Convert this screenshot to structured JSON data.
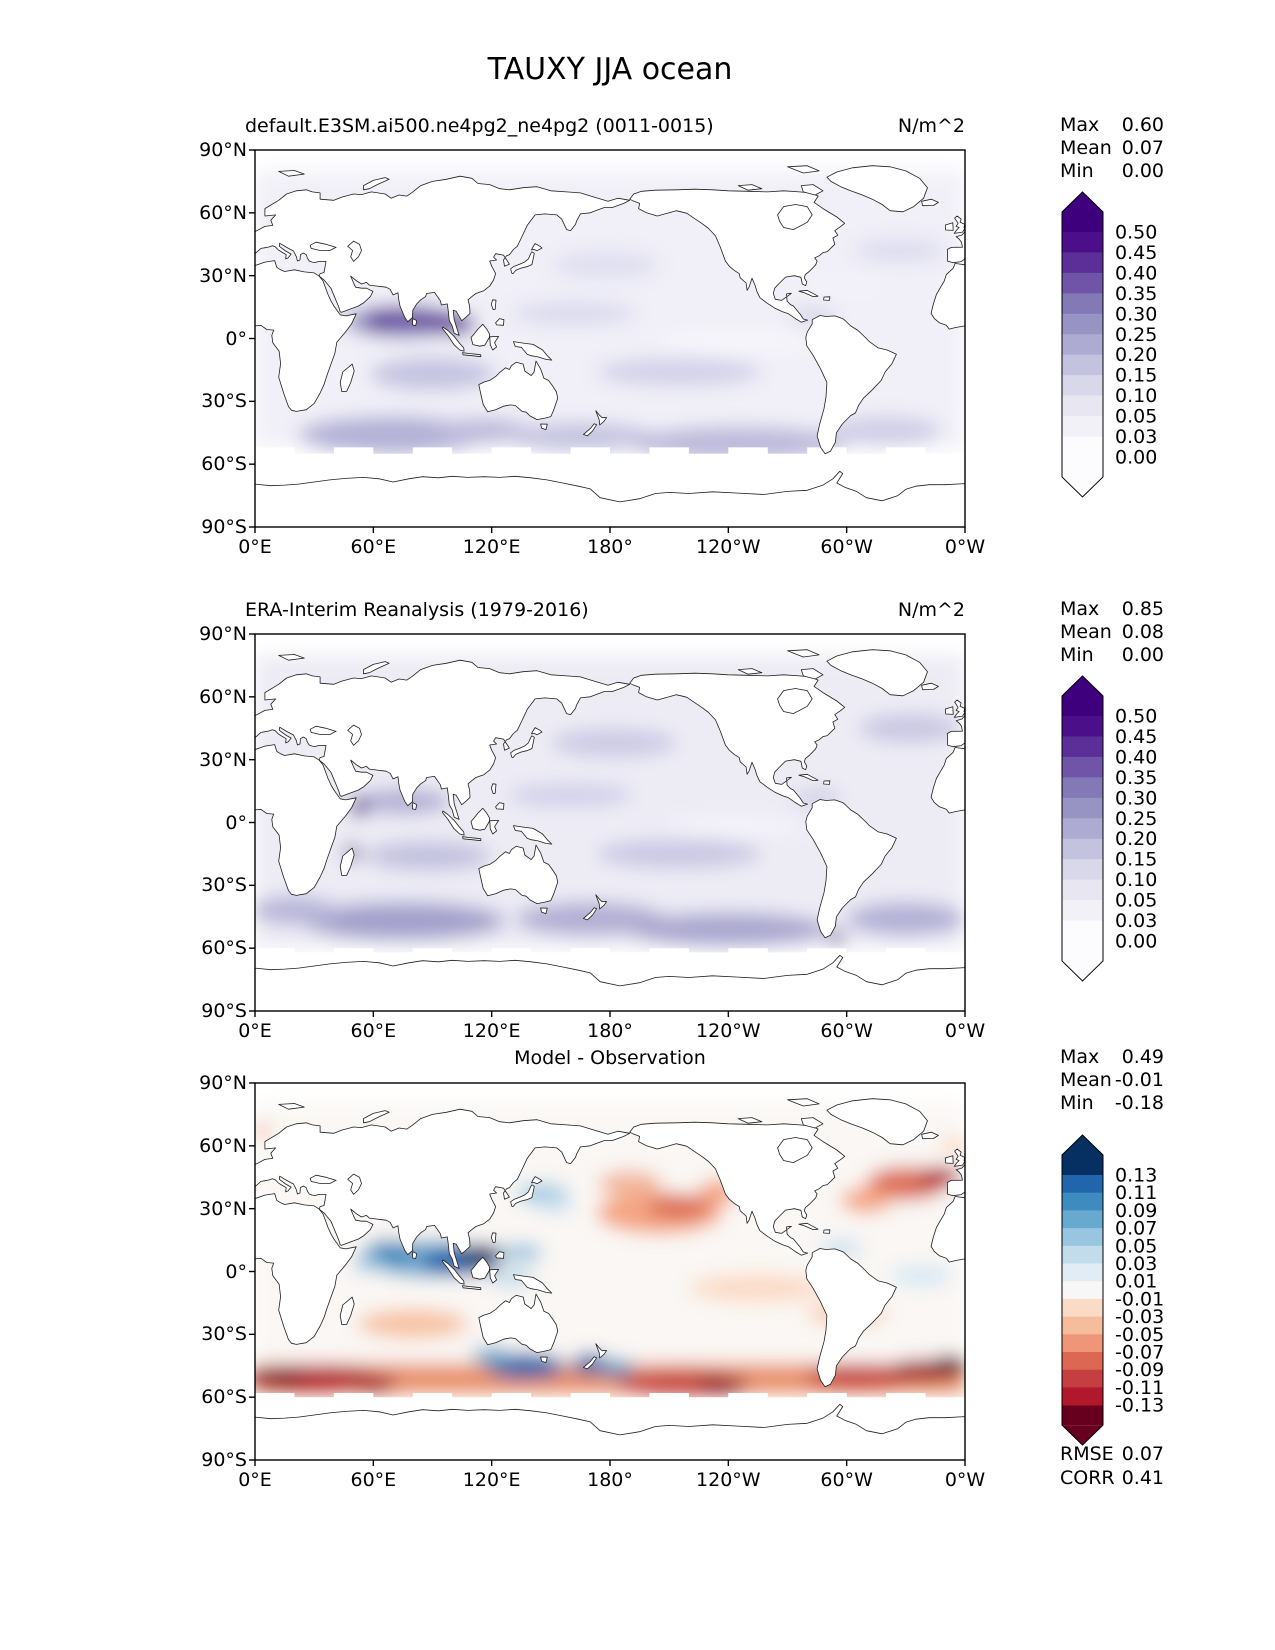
{
  "page_title": "TAUXY JJA ocean",
  "axes": {
    "x_ticks": [
      "0°E",
      "60°E",
      "120°E",
      "180°",
      "120°W",
      "60°W",
      "0°W"
    ],
    "y_ticks": [
      "90°N",
      "60°N",
      "30°N",
      "0°",
      "30°S",
      "60°S",
      "90°S"
    ]
  },
  "panels": [
    {
      "title": "default.E3SM.ai500.ne4pg2_ne4pg2 (0011-0015)",
      "units": "N/m^2",
      "stats": [
        {
          "label": "Max",
          "value": "0.60"
        },
        {
          "label": "Mean",
          "value": "0.07"
        },
        {
          "label": "Min",
          "value": "0.00"
        }
      ],
      "colorbar_labels": [
        "0.50",
        "0.45",
        "0.40",
        "0.35",
        "0.30",
        "0.25",
        "0.20",
        "0.15",
        "0.10",
        "0.05",
        "0.03",
        "0.00"
      ]
    },
    {
      "title": "ERA-Interim Reanalysis (1979-2016)",
      "units": "N/m^2",
      "stats": [
        {
          "label": "Max",
          "value": "0.85"
        },
        {
          "label": "Mean",
          "value": "0.08"
        },
        {
          "label": "Min",
          "value": "0.00"
        }
      ],
      "colorbar_labels": [
        "0.50",
        "0.45",
        "0.40",
        "0.35",
        "0.30",
        "0.25",
        "0.20",
        "0.15",
        "0.10",
        "0.05",
        "0.03",
        "0.00"
      ]
    },
    {
      "title": "Model - Observation",
      "units": "",
      "stats": [
        {
          "label": "Max",
          "value": "0.49"
        },
        {
          "label": "Mean",
          "value": "-0.01"
        },
        {
          "label": "Min",
          "value": "-0.18"
        }
      ],
      "colorbar_labels": [
        "0.13",
        "0.11",
        "0.09",
        "0.07",
        "0.05",
        "0.03",
        "0.01",
        "-0.01",
        "-0.03",
        "-0.05",
        "-0.07",
        "-0.09",
        "-0.11",
        "-0.13"
      ],
      "metrics": [
        {
          "label": "RMSE",
          "value": "0.07"
        },
        {
          "label": "CORR",
          "value": "0.41"
        }
      ]
    }
  ],
  "chart_data": {
    "type": "heatmap",
    "subtype": "filled-contour global lat-lon maps (Pacific-centered, ocean-only field)",
    "suptitle": "TAUXY JJA ocean",
    "variable": "TAUXY (zonal surface wind stress), JJA climatology over ocean",
    "units": "N/m^2",
    "x_axis": {
      "label": "longitude",
      "range_deg": [
        0,
        360
      ],
      "ticks": [
        "0°E",
        "60°E",
        "120°E",
        "180°",
        "120°W",
        "60°W",
        "0°W"
      ],
      "grid": false
    },
    "y_axis": {
      "label": "latitude",
      "range_deg": [
        -90,
        90
      ],
      "ticks": [
        "90°N",
        "60°N",
        "30°N",
        "0°",
        "30°S",
        "60°S",
        "90°S"
      ],
      "grid": false
    },
    "legend_position": "right colorbar per panel, vertical, extended arrows both ends",
    "panels": [
      {
        "role": "model",
        "title": "default.E3SM.ai500.ne4pg2_ne4pg2 (0011-0015)",
        "stats": {
          "max": 0.6,
          "mean": 0.07,
          "min": 0.0
        },
        "contour_levels": [
          0.0,
          0.03,
          0.05,
          0.1,
          0.15,
          0.2,
          0.25,
          0.3,
          0.35,
          0.4,
          0.45,
          0.5
        ],
        "colormap": "white-to-dark-purple (Purples)",
        "band_colors_low_to_high": [
          "#fcfbfd",
          "#f3f1f8",
          "#e8e6f1",
          "#d9d8ea",
          "#c4c3df",
          "#aeabd2",
          "#9794c4",
          "#8379b7",
          "#6f54a8",
          "#5c2f98",
          "#4c0f8a"
        ],
        "extend_low_color": "#fcfbfd",
        "extend_high_color": "#3f007d",
        "field_summary": "Strong maximum (0.3-0.55) along 0-15N in Arabian Sea / Bay of Bengal / monsoon jet; moderate bands in southern-hemisphere westerlies (40-55S) and trade-wind belts; near zero over most of land-masked and high-latitude ocean; data masked poleward of ~52S."
      },
      {
        "role": "reference",
        "title": "ERA-Interim Reanalysis (1979-2016)",
        "stats": {
          "max": 0.85,
          "mean": 0.08,
          "min": 0.0
        },
        "contour_levels": [
          0.0,
          0.03,
          0.05,
          0.1,
          0.15,
          0.2,
          0.25,
          0.3,
          0.35,
          0.4,
          0.45,
          0.5
        ],
        "colormap": "white-to-dark-purple (Purples)",
        "band_colors_low_to_high": [
          "#fcfbfd",
          "#f3f1f8",
          "#e8e6f1",
          "#d9d8ea",
          "#c4c3df",
          "#aeabd2",
          "#9794c4",
          "#8379b7",
          "#6f54a8",
          "#5c2f98",
          "#4c0f8a"
        ],
        "extend_low_color": "#fcfbfd",
        "extend_high_color": "#3f007d",
        "field_summary": "Compact dark maxima off Somalia and near Madagascar (Somali jet), broad 0.2-0.35 southern-ocean westerly band around 40-55S, moderate trade belts, small dark spot near Tierra del Fuego; data masked poleward of ~60S."
      },
      {
        "role": "difference",
        "title": "Model - Observation",
        "stats": {
          "max": 0.49,
          "mean": -0.01,
          "min": -0.18
        },
        "metrics": {
          "rmse": 0.07,
          "corr": 0.41
        },
        "contour_levels": [
          -0.13,
          -0.11,
          -0.09,
          -0.07,
          -0.05,
          -0.03,
          -0.01,
          0.01,
          0.03,
          0.05,
          0.07,
          0.09,
          0.11,
          0.13
        ],
        "colormap": "red-white-blue diverging (RdBu), blue = positive",
        "band_colors_low_to_high": [
          "#b2182b",
          "#c53e41",
          "#dc6853",
          "#ee9677",
          "#f6bd9d",
          "#fadbc6",
          "#f7f7f7",
          "#e1ecf4",
          "#c2dcec",
          "#98c5df",
          "#67a9cf",
          "#3d8bbf",
          "#2166ac"
        ],
        "extend_low_color": "#67001f",
        "extend_high_color": "#053061",
        "field_summary": "Large positive (dark blue) bias 0-15N across Indian Ocean / Maritime Continent; blue south of Australia and around New Zealand; strong negative (dark red) bias along 45-58S circumpolar belt, strongest south of Africa and in SE Pacific/Atlantic; orange negative bias over central North Pacific (15-40N) and northeast Atlantic."
      }
    ]
  }
}
